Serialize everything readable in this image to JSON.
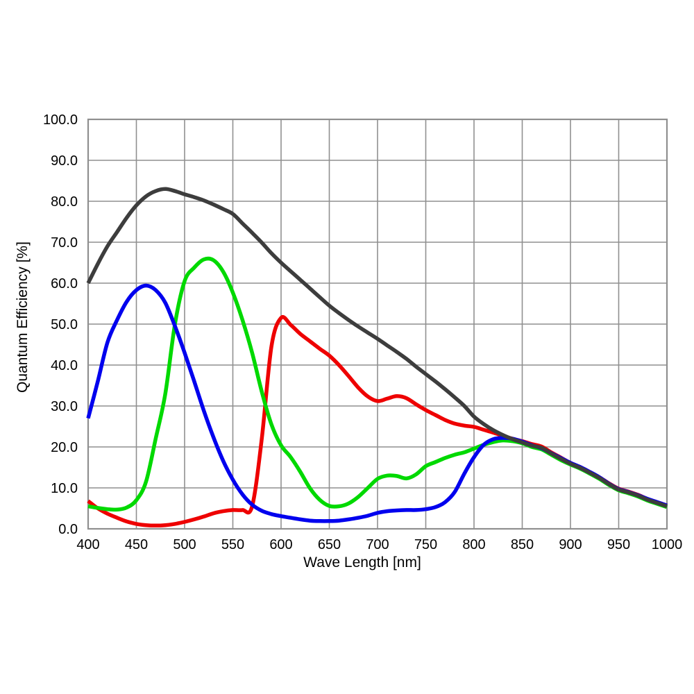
{
  "chart_data": {
    "type": "line",
    "title": "",
    "xlabel": "Wave Length [nm]",
    "ylabel": "Quantum Efficiency [%]",
    "xlim": [
      400,
      1000
    ],
    "ylim": [
      0,
      100
    ],
    "x_ticks": [
      400,
      450,
      500,
      550,
      600,
      650,
      700,
      750,
      800,
      850,
      900,
      950,
      1000
    ],
    "y_ticks": [
      0,
      10,
      20,
      30,
      40,
      50,
      60,
      70,
      80,
      90,
      100
    ],
    "y_tick_labels": [
      "0.0",
      "10.0",
      "20.0",
      "30.0",
      "40.0",
      "50.0",
      "60.0",
      "70.0",
      "80.0",
      "90.0",
      "100.0"
    ],
    "grid": true,
    "legend_position": "none",
    "grid_color": "#8f8f8f",
    "axis_text_color": "#000000",
    "x": [
      400,
      410,
      420,
      430,
      440,
      450,
      460,
      470,
      480,
      490,
      500,
      510,
      520,
      530,
      540,
      550,
      560,
      570,
      580,
      590,
      600,
      610,
      620,
      630,
      640,
      650,
      660,
      670,
      680,
      690,
      700,
      710,
      720,
      730,
      740,
      750,
      760,
      770,
      780,
      790,
      800,
      810,
      820,
      830,
      840,
      850,
      860,
      870,
      880,
      890,
      900,
      910,
      920,
      930,
      940,
      950,
      960,
      970,
      980,
      990,
      1000
    ],
    "series": [
      {
        "name": "red-channel",
        "color": "#ee0000",
        "peak": {
          "wavelength": 600,
          "qe": 51.5
        },
        "values": [
          6.8,
          5.0,
          3.7,
          2.7,
          1.8,
          1.2,
          0.9,
          0.8,
          0.9,
          1.2,
          1.7,
          2.3,
          3.0,
          3.8,
          4.3,
          4.6,
          4.6,
          5.5,
          22.0,
          44.5,
          51.5,
          49.8,
          47.6,
          45.8,
          44.0,
          42.3,
          40.0,
          37.3,
          34.5,
          32.3,
          31.2,
          31.8,
          32.4,
          31.9,
          30.4,
          29.0,
          27.8,
          26.6,
          25.7,
          25.2,
          24.9,
          24.2,
          23.5,
          22.7,
          22.0,
          21.4,
          20.7,
          20.1,
          18.7,
          17.4,
          16.1,
          15.1,
          13.9,
          12.6,
          11.1,
          9.8,
          9.1,
          8.3,
          7.3,
          6.5,
          5.7
        ]
      },
      {
        "name": "green-channel",
        "color": "#00d900",
        "peak": {
          "wavelength": 523,
          "qe": 66.0
        },
        "values": [
          5.5,
          5.1,
          4.8,
          4.7,
          5.2,
          7.0,
          11.5,
          22.0,
          33.0,
          50.0,
          60.5,
          63.8,
          65.8,
          65.6,
          62.8,
          57.7,
          51.0,
          43.0,
          33.5,
          25.5,
          20.4,
          17.5,
          13.9,
          9.9,
          7.1,
          5.6,
          5.5,
          6.2,
          7.8,
          10.0,
          12.2,
          13.0,
          12.9,
          12.3,
          13.3,
          15.3,
          16.3,
          17.3,
          18.1,
          18.7,
          19.6,
          20.5,
          21.2,
          21.6,
          21.4,
          20.9,
          20.0,
          19.4,
          18.1,
          16.8,
          15.7,
          14.7,
          13.5,
          12.2,
          10.7,
          9.4,
          8.7,
          7.9,
          6.9,
          6.1,
          5.3
        ]
      },
      {
        "name": "blue-channel",
        "color": "#0000ee",
        "peak": {
          "wavelength": 460,
          "qe": 59.4
        },
        "values": [
          27.0,
          36.0,
          45.5,
          51.0,
          55.5,
          58.3,
          59.4,
          58.3,
          55.2,
          49.5,
          43.0,
          36.0,
          28.8,
          22.3,
          16.6,
          12.0,
          8.4,
          5.9,
          4.4,
          3.6,
          3.1,
          2.7,
          2.3,
          2.0,
          1.9,
          1.9,
          2.0,
          2.3,
          2.7,
          3.2,
          3.9,
          4.3,
          4.5,
          4.6,
          4.6,
          4.8,
          5.3,
          6.5,
          9.0,
          13.5,
          17.5,
          20.5,
          21.9,
          22.2,
          22.0,
          21.3,
          20.4,
          19.7,
          18.5,
          17.3,
          16.1,
          15.1,
          13.9,
          12.6,
          11.0,
          9.7,
          9.0,
          8.2,
          7.3,
          6.5,
          5.7
        ]
      },
      {
        "name": "monochrome",
        "color": "#3d3d3d",
        "peak": {
          "wavelength": 480,
          "qe": 83.0
        },
        "values": [
          60.0,
          64.7,
          69.0,
          72.5,
          76.0,
          79.0,
          81.2,
          82.5,
          83.0,
          82.5,
          81.7,
          81.0,
          80.2,
          79.2,
          78.1,
          76.9,
          74.6,
          72.3,
          69.9,
          67.3,
          65.0,
          62.9,
          60.8,
          58.7,
          56.6,
          54.5,
          52.7,
          51.0,
          49.4,
          47.9,
          46.4,
          44.8,
          43.2,
          41.5,
          39.6,
          37.8,
          36.0,
          34.1,
          32.1,
          30.0,
          27.4,
          25.6,
          24.1,
          22.9,
          21.9,
          21.1,
          20.3,
          19.8,
          18.4,
          17.1,
          15.9,
          14.9,
          13.7,
          12.4,
          10.9,
          9.6,
          8.9,
          8.1,
          7.1,
          6.3,
          5.5
        ]
      }
    ]
  }
}
